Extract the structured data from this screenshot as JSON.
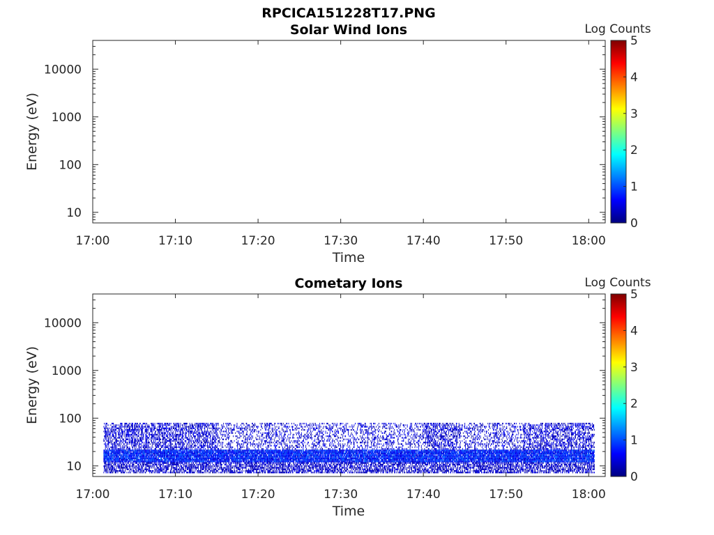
{
  "figure": {
    "title": "RPCICA151228T17.PNG"
  },
  "colorbar": {
    "label": "Log Counts",
    "ticks": [
      "0",
      "1",
      "2",
      "3",
      "4",
      "5"
    ],
    "colormap": [
      "#00007f",
      "#0000ff",
      "#007fff",
      "#00ffff",
      "#7fff7f",
      "#ffff00",
      "#ff7f00",
      "#ff0000",
      "#7f0000"
    ]
  },
  "chart_data": [
    {
      "type": "heatmap",
      "title": "Solar Wind Ions",
      "xlabel": "Time",
      "ylabel": "Energy (eV)",
      "x_ticks": [
        "17:00",
        "17:10",
        "17:20",
        "17:30",
        "17:40",
        "17:50",
        "18:00"
      ],
      "y_ticks": [
        "10",
        "100",
        "1000",
        "10000"
      ],
      "y_scale": "log",
      "ylim": [
        6,
        40000
      ],
      "xlim_minutes": [
        0,
        62
      ],
      "clim": [
        0,
        5
      ],
      "data_present": false
    },
    {
      "type": "heatmap",
      "title": "Cometary Ions",
      "xlabel": "Time",
      "ylabel": "Energy (eV)",
      "x_ticks": [
        "17:00",
        "17:10",
        "17:20",
        "17:30",
        "17:40",
        "17:50",
        "18:00"
      ],
      "y_ticks": [
        "10",
        "100",
        "1000",
        "10000"
      ],
      "y_scale": "log",
      "ylim": [
        6,
        40000
      ],
      "xlim_minutes": [
        0,
        62
      ],
      "clim": [
        0,
        5
      ],
      "data_present": true,
      "data_time_range_minutes": [
        1.3,
        60.7
      ],
      "bands": [
        {
          "energy_range_eV": [
            12,
            22
          ],
          "log_counts": [
            0.3,
            1.2
          ],
          "density": "dense"
        },
        {
          "energy_range_eV": [
            7,
            12
          ],
          "log_counts": [
            0.1,
            0.6
          ],
          "density": "medium"
        },
        {
          "energy_range_eV": [
            22,
            80
          ],
          "log_counts": [
            0.1,
            0.7
          ],
          "density": "sparse"
        }
      ]
    }
  ]
}
